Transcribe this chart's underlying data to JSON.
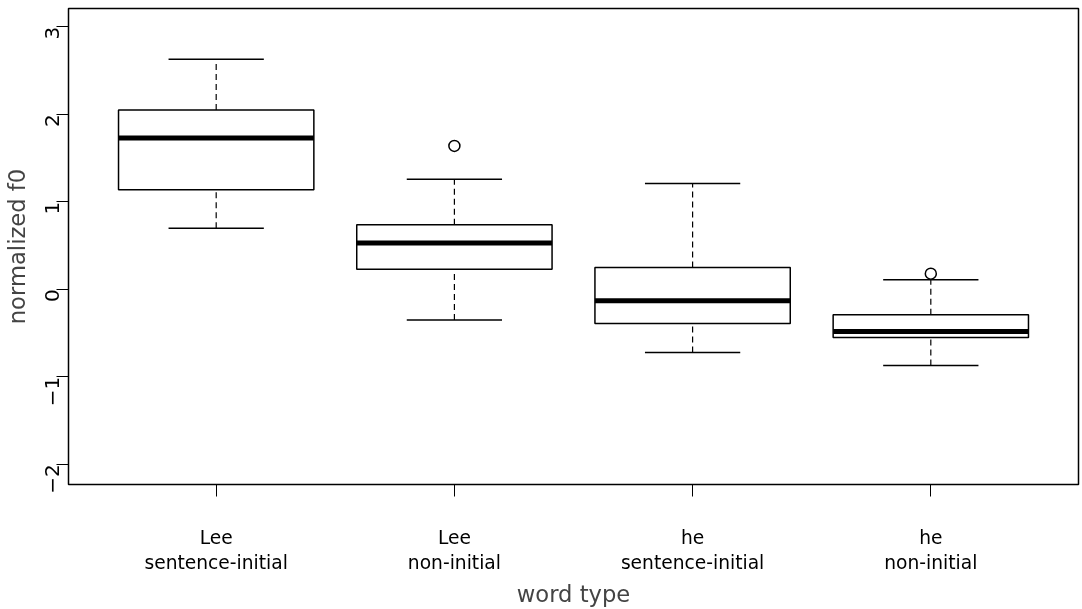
{
  "chart_data": {
    "type": "box",
    "xlabel": "word type",
    "ylabel": "normalized f0",
    "categories": [
      "Lee\nsentence-initial",
      "Lee\nnon-initial",
      "he\nsentence-initial",
      "he\nnon-initial"
    ],
    "boxes": [
      {
        "low": 0.7,
        "q1": 1.14,
        "median": 1.73,
        "q3": 2.05,
        "high": 2.63
      },
      {
        "low": -0.35,
        "q1": 0.23,
        "median": 0.53,
        "q3": 0.74,
        "high": 1.26,
        "outliers": [
          1.64
        ]
      },
      {
        "low": -0.72,
        "q1": -0.39,
        "median": -0.13,
        "q3": 0.25,
        "high": 1.21
      },
      {
        "low": -0.87,
        "q1": -0.55,
        "median": -0.48,
        "q3": -0.29,
        "high": 0.11,
        "outliers": [
          0.18
        ]
      }
    ],
    "color": "#ffffff",
    "ylim": [
      -2.23,
      3.21
    ],
    "yticks": [
      -2,
      -1,
      0,
      1,
      2,
      3
    ],
    "grid": false
  }
}
